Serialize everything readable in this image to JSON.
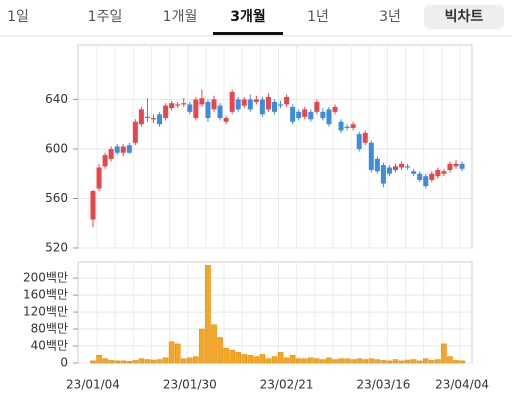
{
  "tabs": [
    {
      "label": "1일",
      "selected": false
    },
    {
      "label": "1주일",
      "selected": false
    },
    {
      "label": "1개월",
      "selected": false
    },
    {
      "label": "3개월",
      "selected": true
    },
    {
      "label": "1년",
      "selected": false
    },
    {
      "label": "3년",
      "selected": false
    }
  ],
  "button": "빅차트",
  "chart_data": [
    {
      "type": "candlestick",
      "categories": [
        "23/01/04",
        null,
        null,
        null,
        null,
        null,
        null,
        null,
        null,
        null,
        null,
        null,
        null,
        null,
        null,
        null,
        "23/01/30",
        null,
        null,
        null,
        null,
        null,
        null,
        null,
        null,
        null,
        null,
        null,
        null,
        null,
        null,
        null,
        "23/02/21",
        null,
        null,
        null,
        null,
        null,
        null,
        null,
        null,
        null,
        null,
        null,
        null,
        null,
        null,
        null,
        "23/03/16",
        null,
        null,
        null,
        null,
        null,
        null,
        null,
        null,
        null,
        null,
        null,
        null,
        "23/04/04"
      ],
      "open": [
        543,
        568,
        586,
        592,
        602,
        597,
        603,
        605,
        620,
        626,
        624,
        628,
        625,
        633,
        635,
        636,
        636,
        625,
        636,
        638,
        632,
        635,
        622,
        630,
        640,
        635,
        640,
        638,
        640,
        632,
        638,
        636,
        636,
        634,
        630,
        626,
        630,
        630,
        630,
        632,
        630,
        622,
        618,
        617,
        612,
        605,
        605,
        592,
        587,
        585,
        583,
        585,
        586,
        582,
        580,
        578,
        575,
        578,
        580,
        583,
        586,
        588
      ],
      "high": [
        567,
        588,
        597,
        602,
        604,
        604,
        605,
        624,
        634,
        641,
        628,
        630,
        637,
        639,
        638,
        641,
        638,
        642,
        648,
        640,
        643,
        637,
        627,
        648,
        642,
        642,
        644,
        643,
        642,
        645,
        640,
        639,
        644,
        636,
        632,
        634,
        632,
        640,
        633,
        634,
        636,
        624,
        620,
        622,
        614,
        615,
        607,
        594,
        589,
        587,
        588,
        590,
        588,
        584,
        582,
        580,
        582,
        585,
        584,
        590,
        591,
        590
      ],
      "low": [
        537,
        566,
        584,
        590,
        595,
        594,
        596,
        603,
        618,
        622,
        621,
        618,
        623,
        631,
        633,
        634,
        628,
        623,
        634,
        622,
        630,
        623,
        620,
        628,
        630,
        633,
        630,
        636,
        626,
        630,
        628,
        633,
        634,
        620,
        623,
        624,
        622,
        628,
        623,
        618,
        628,
        613,
        615,
        615,
        598,
        603,
        581,
        580,
        569,
        578,
        581,
        583,
        583,
        578,
        573,
        568,
        573,
        576,
        578,
        581,
        584,
        582
      ],
      "close": [
        566,
        585,
        595,
        600,
        597,
        602,
        597,
        622,
        632,
        625,
        625,
        620,
        635,
        637,
        636,
        637,
        630,
        640,
        641,
        625,
        640,
        625,
        625,
        646,
        632,
        640,
        632,
        640,
        628,
        642,
        630,
        635,
        642,
        622,
        625,
        632,
        624,
        638,
        625,
        620,
        634,
        615,
        617,
        620,
        600,
        613,
        583,
        582,
        572,
        580,
        586,
        588,
        585,
        580,
        575,
        570,
        580,
        583,
        582,
        588,
        588,
        584
      ],
      "up_color": "#e8464c",
      "down_color": "#3b8de0",
      "ylim": [
        520,
        684
      ],
      "yticks": [
        520,
        560,
        600,
        640
      ],
      "grid": true
    },
    {
      "type": "bar",
      "values": [
        5,
        18,
        10,
        6,
        5,
        5,
        4,
        6,
        10,
        8,
        7,
        8,
        12,
        50,
        45,
        10,
        12,
        15,
        80,
        230,
        90,
        60,
        35,
        30,
        25,
        20,
        18,
        15,
        20,
        10,
        15,
        25,
        12,
        18,
        10,
        10,
        12,
        10,
        8,
        12,
        8,
        10,
        10,
        8,
        10,
        8,
        10,
        8,
        6,
        5,
        8,
        5,
        7,
        8,
        5,
        10,
        6,
        8,
        45,
        15,
        6,
        5
      ],
      "color": "#f5a623",
      "ylim": [
        0,
        238
      ],
      "yticks": [
        0,
        {
          "value": 40,
          "label": "40백만"
        },
        {
          "value": 80,
          "label": "80백만"
        },
        {
          "value": 120,
          "label": "120백만"
        },
        {
          "value": 160,
          "label": "160백만"
        },
        {
          "value": 200,
          "label": "200백만"
        }
      ],
      "grid": true
    }
  ]
}
